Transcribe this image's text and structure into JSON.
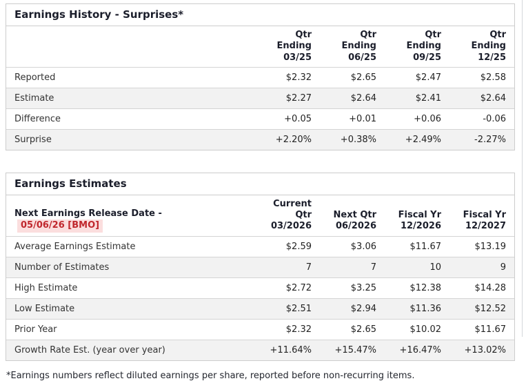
{
  "colors": {
    "positive": "#217a5a",
    "negative": "#c0272d",
    "badge_background": "#fbdede",
    "heading": "#1b1e2b"
  },
  "surprises_table": {
    "title": "Earnings History - Surprises*",
    "columns": [
      {
        "line1": "Qtr Ending",
        "line2": "03/25"
      },
      {
        "line1": "Qtr Ending",
        "line2": "06/25"
      },
      {
        "line1": "Qtr Ending",
        "line2": "09/25"
      },
      {
        "line1": "Qtr Ending",
        "line2": "12/25"
      }
    ],
    "rows": [
      {
        "label": "Reported",
        "values": [
          "$2.32",
          "$2.65",
          "$2.47",
          "$2.58"
        ]
      },
      {
        "label": "Estimate",
        "values": [
          "$2.27",
          "$2.64",
          "$2.41",
          "$2.64"
        ]
      },
      {
        "label": "Difference",
        "values": [
          "+0.05",
          "+0.01",
          "+0.06",
          "-0.06"
        ],
        "types": [
          "pos",
          "pos",
          "pos",
          "neg"
        ]
      },
      {
        "label": "Surprise",
        "values": [
          "+2.20%",
          "+0.38%",
          "+2.49%",
          "-2.27%"
        ],
        "types": [
          "pos",
          "pos",
          "pos",
          "neg"
        ]
      }
    ]
  },
  "estimates_table": {
    "title": "Earnings Estimates",
    "release_label": "Next Earnings Release Date -",
    "release_date": "05/06/26 [BMO]",
    "columns": [
      {
        "line1": "Current Qtr",
        "line2": "03/2026"
      },
      {
        "line1": "Next Qtr",
        "line2": "06/2026"
      },
      {
        "line1": "Fiscal Yr",
        "line2": "12/2026"
      },
      {
        "line1": "Fiscal Yr",
        "line2": "12/2027"
      }
    ],
    "rows": [
      {
        "label": "Average Earnings Estimate",
        "values": [
          "$2.59",
          "$3.06",
          "$11.67",
          "$13.19"
        ]
      },
      {
        "label": "Number of Estimates",
        "values": [
          "7",
          "7",
          "10",
          "9"
        ]
      },
      {
        "label": "High Estimate",
        "values": [
          "$2.72",
          "$3.25",
          "$12.38",
          "$14.28"
        ]
      },
      {
        "label": "Low Estimate",
        "values": [
          "$2.51",
          "$2.94",
          "$11.36",
          "$12.52"
        ]
      },
      {
        "label": "Prior Year",
        "values": [
          "$2.32",
          "$2.65",
          "$10.02",
          "$11.67"
        ]
      },
      {
        "label": "Growth Rate Est. (year over year)",
        "values": [
          "+11.64%",
          "+15.47%",
          "+16.47%",
          "+13.02%"
        ],
        "types": [
          "pos",
          "pos",
          "pos",
          "pos"
        ]
      }
    ]
  },
  "footnote": "*Earnings numbers reflect diluted earnings per share, reported before non-recurring items."
}
